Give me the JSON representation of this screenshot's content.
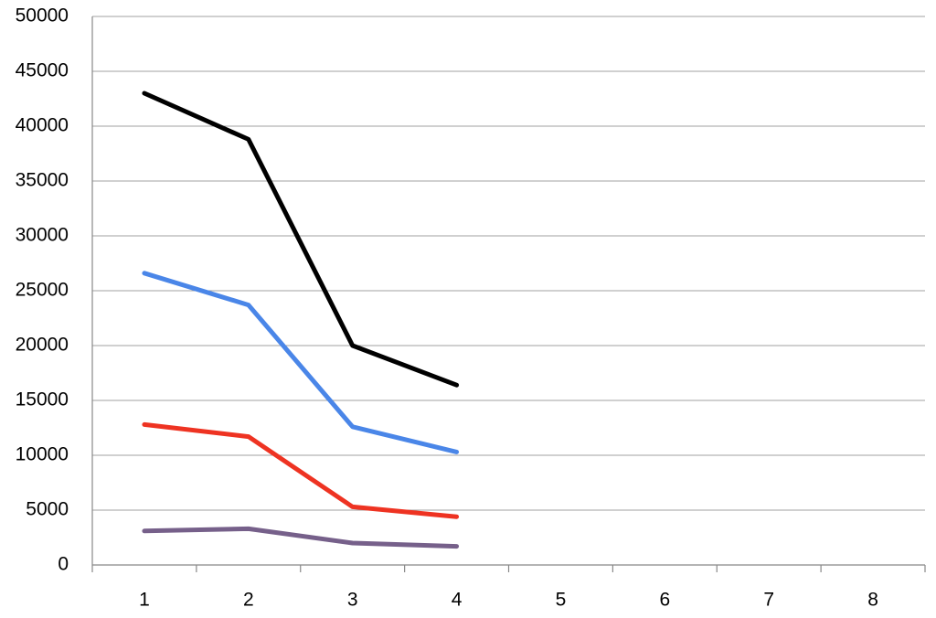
{
  "chart_data": {
    "type": "line",
    "categories": [
      "1",
      "2",
      "3",
      "4",
      "5",
      "6",
      "7",
      "8"
    ],
    "series": [
      {
        "color": "#000000",
        "values": [
          43000,
          38800,
          20000,
          16400,
          null,
          null,
          null,
          null
        ]
      },
      {
        "color": "#4a86e8",
        "values": [
          26600,
          23700,
          12600,
          10300,
          null,
          null,
          null,
          null
        ]
      },
      {
        "color": "#ee3322",
        "values": [
          12800,
          11700,
          5300,
          4400,
          null,
          null,
          null,
          null
        ]
      },
      {
        "color": "#76608a",
        "values": [
          3100,
          3300,
          2000,
          1700,
          null,
          null,
          null,
          null
        ]
      }
    ],
    "ylim": [
      0,
      50000
    ],
    "yticks": [
      0,
      5000,
      10000,
      15000,
      20000,
      25000,
      30000,
      35000,
      40000,
      45000,
      50000
    ],
    "grid": true
  }
}
